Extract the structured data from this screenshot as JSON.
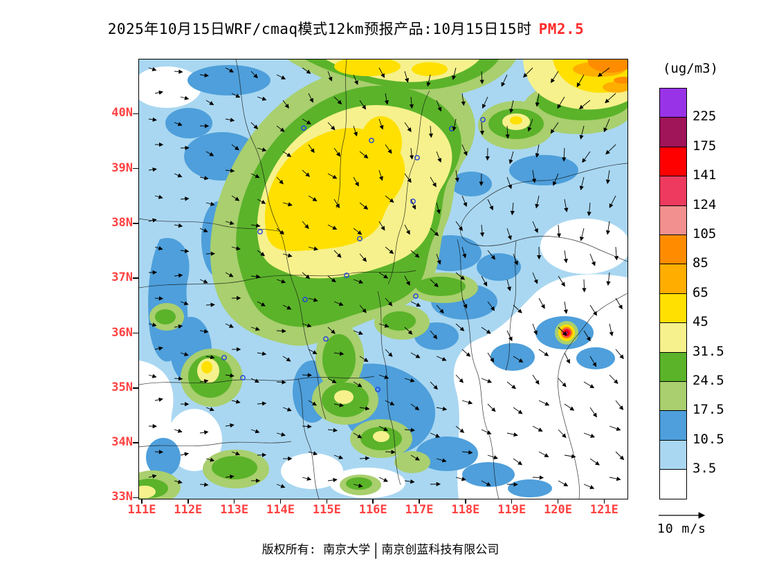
{
  "title": {
    "text": "2025年10月15日WRF/cmaq模式12km预报产品:10月15日15时",
    "pollutant": "PM2.5",
    "pollutant_color": "#FF2D2D"
  },
  "colorbar": {
    "unit": "(ug/m3)",
    "levels": [
      "225",
      "175",
      "141",
      "124",
      "105",
      "85",
      "65",
      "45",
      "31.5",
      "24.5",
      "17.5",
      "10.5",
      "3.5"
    ],
    "colors": [
      "#9933E8",
      "#A0145A",
      "#FF0000",
      "#EE3A5F",
      "#F29090",
      "#FF8C00",
      "#FFAE00",
      "#FFE000",
      "#F6F18C",
      "#5BB32A",
      "#A9CF6E",
      "#4E9FDB",
      "#A9D7F1",
      "#FFFFFF"
    ]
  },
  "axes": {
    "y": [
      "40N",
      "39N",
      "38N",
      "37N",
      "36N",
      "35N",
      "34N",
      "33N"
    ],
    "x": [
      "111E",
      "112E",
      "113E",
      "114E",
      "115E",
      "116E",
      "117E",
      "118E",
      "119E",
      "120E",
      "121E"
    ],
    "label_color": "#FF4040"
  },
  "wind_legend": {
    "label": "10 m/s"
  },
  "footer": {
    "owner": "版权所有: 南京大学",
    "divider": "|",
    "company": "南京创蓝科技有限公司"
  },
  "map": {
    "background": "#A9D7F1",
    "marker_color": "#2040E0"
  }
}
